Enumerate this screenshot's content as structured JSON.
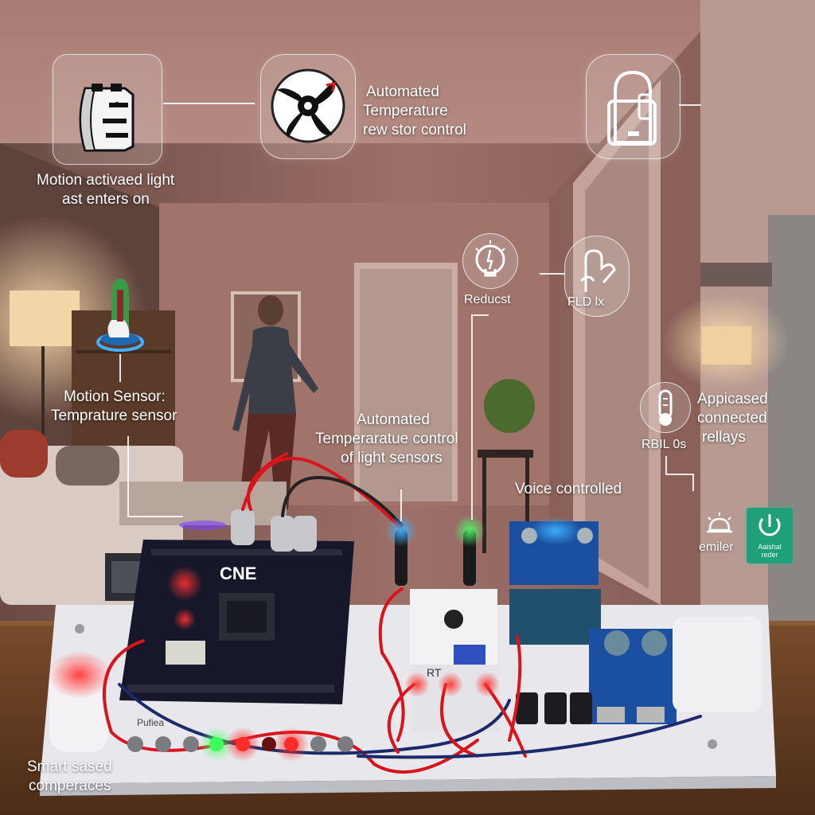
{
  "labels": {
    "motion_light": [
      "Motion activaed light",
      "ast enters on"
    ],
    "auto_temp_top": [
      "Automated",
      "Temperature",
      "rew stor control"
    ],
    "motion_sensor": [
      "Motion Sensor:",
      "Temprature sensor"
    ],
    "reducst": "Reducst",
    "fld": "FLD lx",
    "auto_temp_mid": [
      "Automated",
      "Temperaratue control",
      "of light sensors"
    ],
    "voice": "Voice controlled",
    "relays": [
      "Appicased",
      "connected",
      "rellays"
    ],
    "rbil": "RBIL 0s",
    "emiler": "emiler",
    "power_button": [
      "Aaishal",
      "reder"
    ],
    "smart": [
      "Smart sased",
      "comperaces"
    ],
    "board_text": "CNE",
    "base_label": "Pufiea",
    "relay_label": "RT"
  },
  "colors": {
    "wall": "#8a6058",
    "ceiling": "#b58a80",
    "wood": "#6b4328",
    "board": "#16182a",
    "wire": "#d8141c",
    "relay_blue": "#1b4fa0",
    "led_green": "#3cff5a",
    "led_red": "#ff2020",
    "led_blue": "#35a8ff",
    "power_green": "#1fa07a"
  },
  "icons": [
    "motion-light-icon",
    "fan-icon",
    "phone-lock-icon",
    "thermometer-sensor-icon",
    "bulb-icon",
    "hand-gesture-icon",
    "thermometer-icon",
    "alarm-icon",
    "power-icon"
  ]
}
